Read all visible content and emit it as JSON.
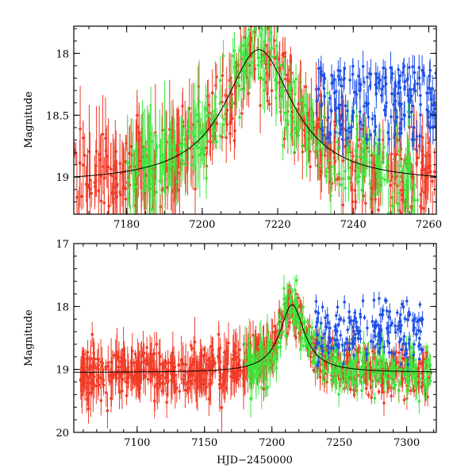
{
  "chart_data": [
    {
      "type": "scatter",
      "panel": "top",
      "title": "",
      "xlabel": "",
      "ylabel": "Magnitude",
      "xlim": [
        7166,
        7262
      ],
      "ylim": [
        19.3,
        17.78
      ],
      "y_inverted": true,
      "xticks": [
        7180,
        7200,
        7220,
        7240,
        7260
      ],
      "yticks": [
        18,
        18.5,
        19
      ],
      "series": [
        {
          "name": "red",
          "color": "#f03c28",
          "x_range": [
            7166,
            7262
          ],
          "approx_trend": "follows model curve, large scatter"
        },
        {
          "name": "green",
          "color": "#3ce83c",
          "x_range": [
            7180,
            7258
          ],
          "approx_trend": "follows model curve, large scatter"
        },
        {
          "name": "blue",
          "color": "#1e50e6",
          "x_range": [
            7230,
            7262
          ],
          "approx_trend": "brighter, ~18.0–18.6"
        }
      ],
      "model_curve": {
        "color": "#000000",
        "baseline": 19.05,
        "peak": 17.97,
        "peak_x": 7215,
        "width": 11
      }
    },
    {
      "type": "scatter",
      "panel": "bottom",
      "title": "",
      "xlabel": "HJD−2450000",
      "ylabel": "Magnitude",
      "xlim": [
        7053,
        7322
      ],
      "ylim": [
        20,
        17
      ],
      "y_inverted": true,
      "xticks": [
        7100,
        7150,
        7200,
        7250,
        7300
      ],
      "yticks": [
        17,
        18,
        19,
        20
      ],
      "series": [
        {
          "name": "red",
          "color": "#f03c28",
          "x_range": [
            7058,
            7318
          ]
        },
        {
          "name": "green",
          "color": "#3ce83c",
          "x_range": [
            7180,
            7318
          ]
        },
        {
          "name": "blue",
          "color": "#1e50e6",
          "x_range": [
            7232,
            7312
          ]
        }
      ],
      "model_curve": {
        "color": "#000000",
        "baseline": 19.05,
        "peak": 17.97,
        "peak_x": 7215,
        "width": 11
      }
    }
  ]
}
